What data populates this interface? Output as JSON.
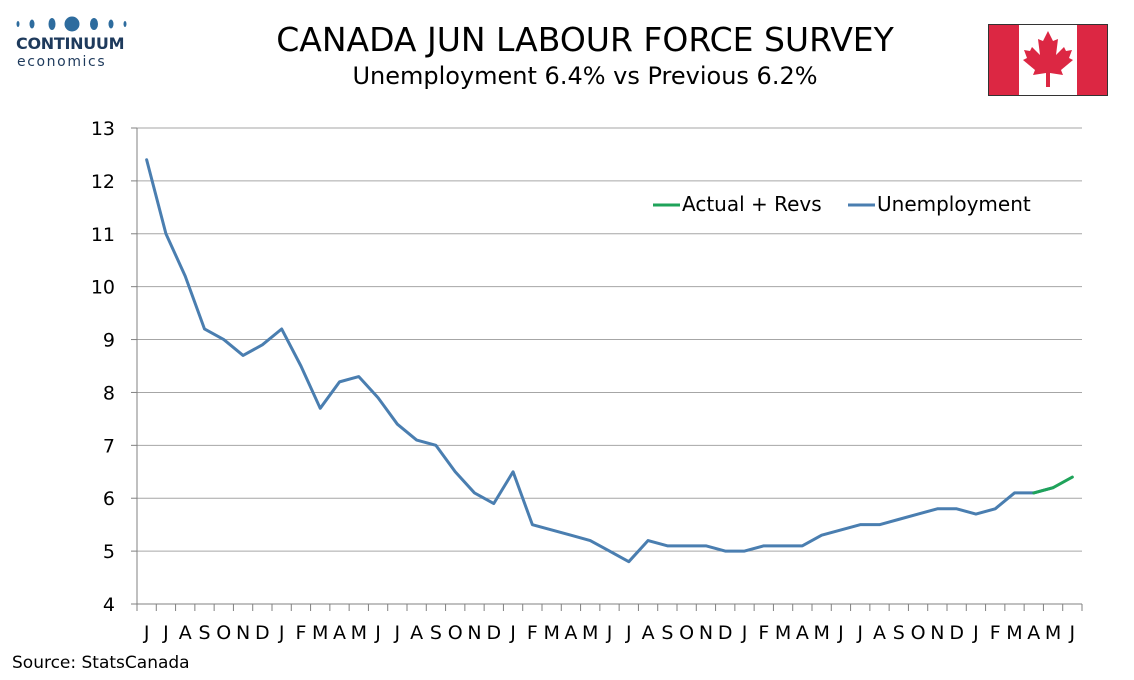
{
  "header": {
    "logo_word": "CONTINUUM",
    "logo_sub": "economics",
    "title": "CANADA JUN LABOUR FORCE SURVEY",
    "subtitle": "Unemployment  6.4% vs Previous 6.2%"
  },
  "flag": {
    "icon": "canada-flag-icon",
    "red": "#dc2743"
  },
  "source": "Source: StatsCanada",
  "chart_data": {
    "type": "line",
    "ylim": [
      4,
      13
    ],
    "yticks": [
      4,
      5,
      6,
      7,
      8,
      9,
      10,
      11,
      12,
      13
    ],
    "grid": true,
    "legend_position": "top-right",
    "categories": [
      "J",
      "J",
      "A",
      "S",
      "O",
      "N",
      "D",
      "J",
      "F",
      "M",
      "A",
      "M",
      "J",
      "J",
      "A",
      "S",
      "O",
      "N",
      "D",
      "J",
      "F",
      "M",
      "A",
      "M",
      "J",
      "J",
      "A",
      "S",
      "O",
      "N",
      "D",
      "J",
      "F",
      "M",
      "A",
      "M",
      "J",
      "J",
      "A",
      "S",
      "O",
      "N",
      "D",
      "J",
      "F",
      "M",
      "A",
      "M",
      "J"
    ],
    "series": [
      {
        "name": "Unemployment",
        "color": "#4a7eb0",
        "values": [
          12.4,
          11.0,
          10.2,
          9.2,
          9.0,
          8.7,
          8.9,
          9.2,
          8.5,
          7.7,
          8.2,
          8.3,
          7.9,
          7.4,
          7.1,
          7.0,
          6.5,
          6.1,
          5.9,
          6.5,
          5.5,
          5.4,
          5.3,
          5.2,
          5.0,
          4.8,
          5.2,
          5.1,
          5.1,
          5.1,
          5.0,
          5.0,
          5.1,
          5.1,
          5.1,
          5.3,
          5.4,
          5.5,
          5.5,
          5.6,
          5.7,
          5.8,
          5.8,
          5.7,
          5.8,
          6.1,
          6.1,
          6.2,
          null
        ]
      },
      {
        "name": "Actual + Revs",
        "color": "#1fa35a",
        "values": [
          null,
          null,
          null,
          null,
          null,
          null,
          null,
          null,
          null,
          null,
          null,
          null,
          null,
          null,
          null,
          null,
          null,
          null,
          null,
          null,
          null,
          null,
          null,
          null,
          null,
          null,
          null,
          null,
          null,
          null,
          null,
          null,
          null,
          null,
          null,
          null,
          null,
          null,
          null,
          null,
          null,
          null,
          null,
          null,
          null,
          null,
          6.1,
          6.2,
          6.4
        ]
      }
    ],
    "legend_order": [
      "Actual + Revs",
      "Unemployment"
    ]
  }
}
